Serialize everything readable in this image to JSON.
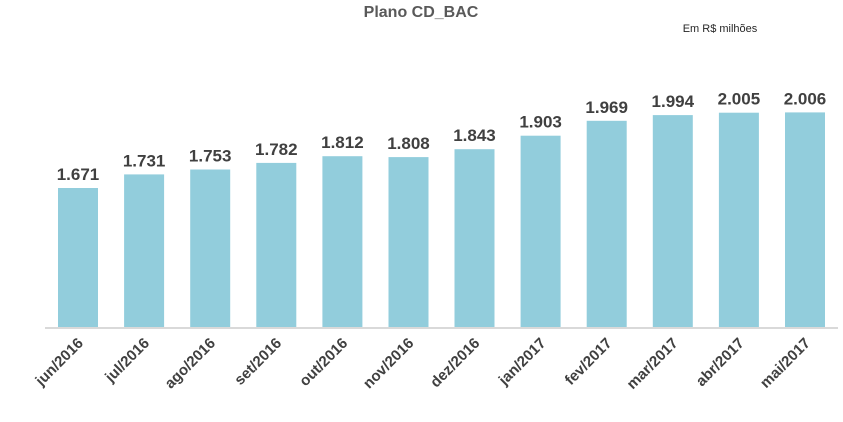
{
  "chart_data": {
    "type": "bar",
    "title": "Plano CD_BAC",
    "unit_note": "Em R$ milhões",
    "xlabel": "",
    "ylabel": "",
    "categories": [
      "jun/2016",
      "jul/2016",
      "ago/2016",
      "set/2016",
      "out/2016",
      "nov/2016",
      "dez/2016",
      "jan/2017",
      "fev/2017",
      "mar/2017",
      "abr/2017",
      "mai/2017"
    ],
    "values": [
      1671,
      1731,
      1753,
      1782,
      1812,
      1808,
      1843,
      1903,
      1969,
      1994,
      2005,
      2006
    ],
    "value_labels": [
      "1.671",
      "1.731",
      "1.753",
      "1.782",
      "1.812",
      "1.808",
      "1.843",
      "1.903",
      "1.969",
      "1.994",
      "2.005",
      "2.006"
    ],
    "ylim": [
      1050,
      2070
    ],
    "grid": false,
    "legend": "none",
    "bar_color": "#92CDDC",
    "axis_color": "#D9D9D9"
  }
}
